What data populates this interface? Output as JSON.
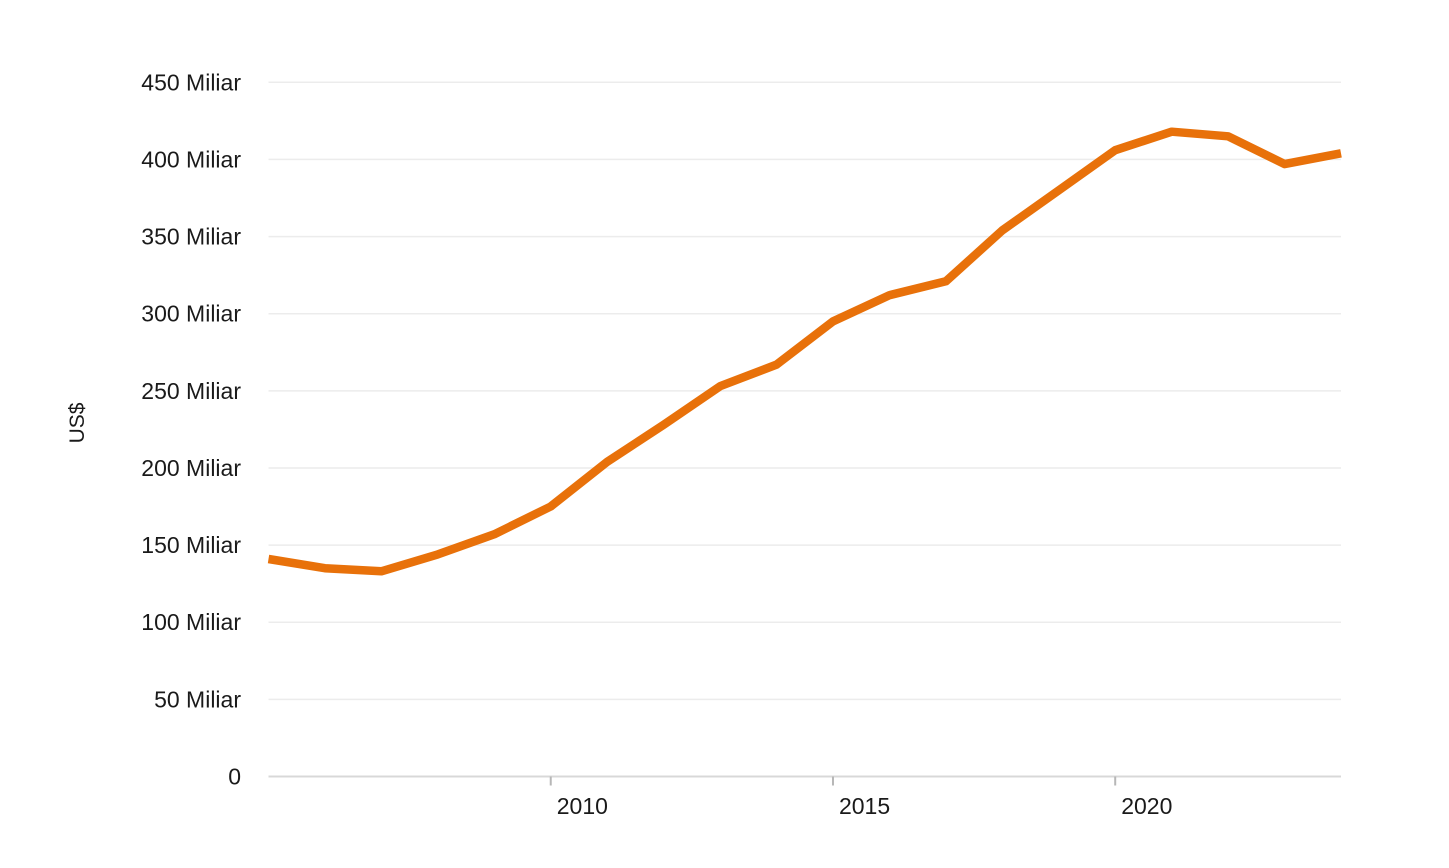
{
  "chart_data": {
    "type": "line",
    "title": "",
    "xlabel": "",
    "ylabel": "US$",
    "unit_suffix": "Miliar",
    "currency": "US$",
    "legend": "none",
    "grid": "horizontal",
    "xlim": [
      2005,
      2024
    ],
    "ylim": [
      0,
      450
    ],
    "x": [
      2005,
      2006,
      2007,
      2008,
      2009,
      2010,
      2011,
      2012,
      2013,
      2014,
      2015,
      2016,
      2017,
      2018,
      2019,
      2020,
      2021,
      2022,
      2023,
      2024
    ],
    "series": [
      {
        "name": "US$ Miliar",
        "color": "#e8710a",
        "values": [
          141,
          135,
          133,
          144,
          157,
          175,
          204,
          228,
          253,
          267,
          295,
          312,
          321,
          354,
          380,
          406,
          418,
          415,
          397,
          404
        ]
      }
    ],
    "y_ticks": [
      0,
      50,
      100,
      150,
      200,
      250,
      300,
      350,
      400,
      450
    ],
    "y_tick_labels": [
      "0",
      "50 Miliar",
      "100 Miliar",
      "150 Miliar",
      "200 Miliar",
      "250 Miliar",
      "300 Miliar",
      "350 Miliar",
      "400 Miliar",
      "450 Miliar"
    ],
    "x_ticks": [
      2010,
      2015,
      2020
    ],
    "x_tick_labels": [
      "2010",
      "2015",
      "2020"
    ]
  },
  "colors": {
    "line": "#e8710a",
    "gridline": "#ececec",
    "baseline": "#d8d8d8",
    "tick_mark": "#b7b7b7",
    "label_text": "#1a1a1a",
    "background": "#ffffff"
  }
}
